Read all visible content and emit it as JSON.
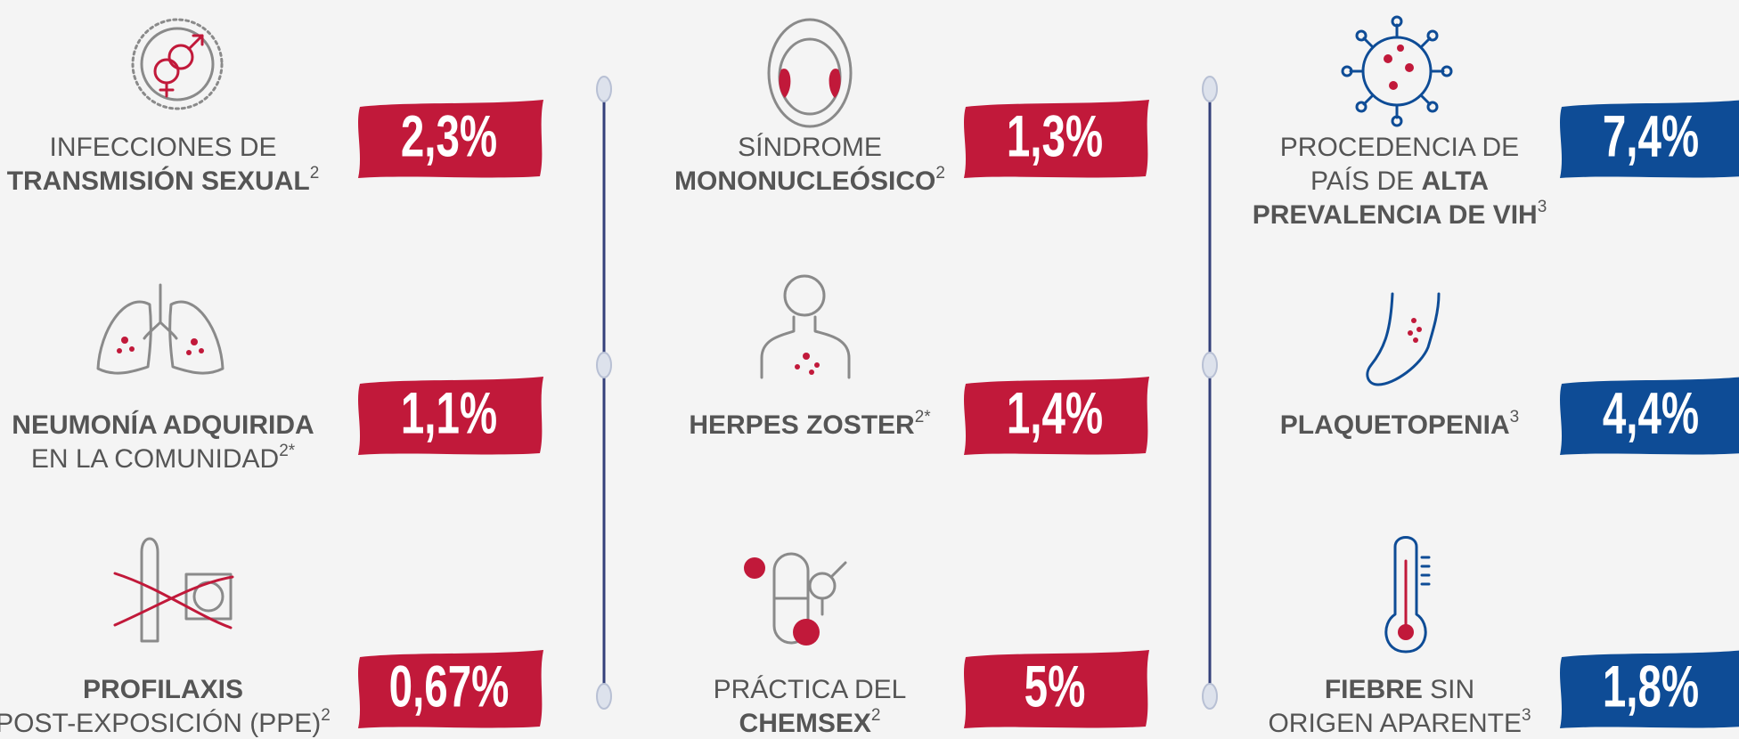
{
  "columns": [
    {
      "items": [
        {
          "lines": [
            [
              {
                "text": "INFECCIONES DE"
              }
            ],
            [
              {
                "text": "TRANSMISIÓN SEXUAL",
                "bold": true
              },
              {
                "text": "2",
                "sup": true
              }
            ]
          ],
          "value": "2,3%",
          "color": "#c1193a"
        },
        {
          "lines": [
            [
              {
                "text": "NEUMONÍA ADQUIRIDA",
                "bold": true
              }
            ],
            [
              {
                "text": "EN LA COMUNIDAD"
              },
              {
                "text": "2*",
                "sup": true
              }
            ]
          ],
          "value": "1,1%",
          "color": "#c1193a"
        },
        {
          "lines": [
            [
              {
                "text": "PROFILAXIS",
                "bold": true
              }
            ],
            [
              {
                "text": "POST-EXPOSICIÓN (PPE)"
              },
              {
                "text": "2",
                "sup": true
              }
            ]
          ],
          "value": "0,67%",
          "color": "#c1193a"
        }
      ]
    },
    {
      "items": [
        {
          "lines": [
            [
              {
                "text": "SÍNDROME"
              }
            ],
            [
              {
                "text": "MONONUCLEÓSICO",
                "bold": true
              },
              {
                "text": "2",
                "sup": true
              }
            ]
          ],
          "value": "1,3%",
          "color": "#c1193a"
        },
        {
          "lines": [
            [
              {
                "text": "HERPES ZOSTER",
                "bold": true
              },
              {
                "text": "2*",
                "sup": true
              }
            ]
          ],
          "value": "1,4%",
          "color": "#c1193a"
        },
        {
          "lines": [
            [
              {
                "text": "PRÁCTICA DEL"
              }
            ],
            [
              {
                "text": "CHEMSEX",
                "bold": true
              },
              {
                "text": "2",
                "sup": true
              }
            ]
          ],
          "value": "5%",
          "color": "#c1193a"
        }
      ]
    },
    {
      "items": [
        {
          "lines": [
            [
              {
                "text": "PROCEDENCIA DE"
              }
            ],
            [
              {
                "text": "PAÍS DE "
              },
              {
                "text": "ALTA",
                "bold": true
              }
            ],
            [
              {
                "text": "PREVALENCIA DE VIH",
                "bold": true
              },
              {
                "text": "3",
                "sup": true
              }
            ]
          ],
          "value": "7,4%",
          "color": "#0e4c96"
        },
        {
          "lines": [
            [
              {
                "text": "PLAQUETOPENIA",
                "bold": true
              },
              {
                "text": "3",
                "sup": true
              }
            ]
          ],
          "value": "4,4%",
          "color": "#0e4c96"
        },
        {
          "lines": [
            [
              {
                "text": "FIEBRE",
                "bold": true
              },
              {
                "text": " SIN"
              }
            ],
            [
              {
                "text": "ORIGEN APARENTE"
              },
              {
                "text": "3",
                "sup": true
              }
            ]
          ],
          "value": "1,8%",
          "color": "#0e4c96"
        }
      ]
    }
  ]
}
